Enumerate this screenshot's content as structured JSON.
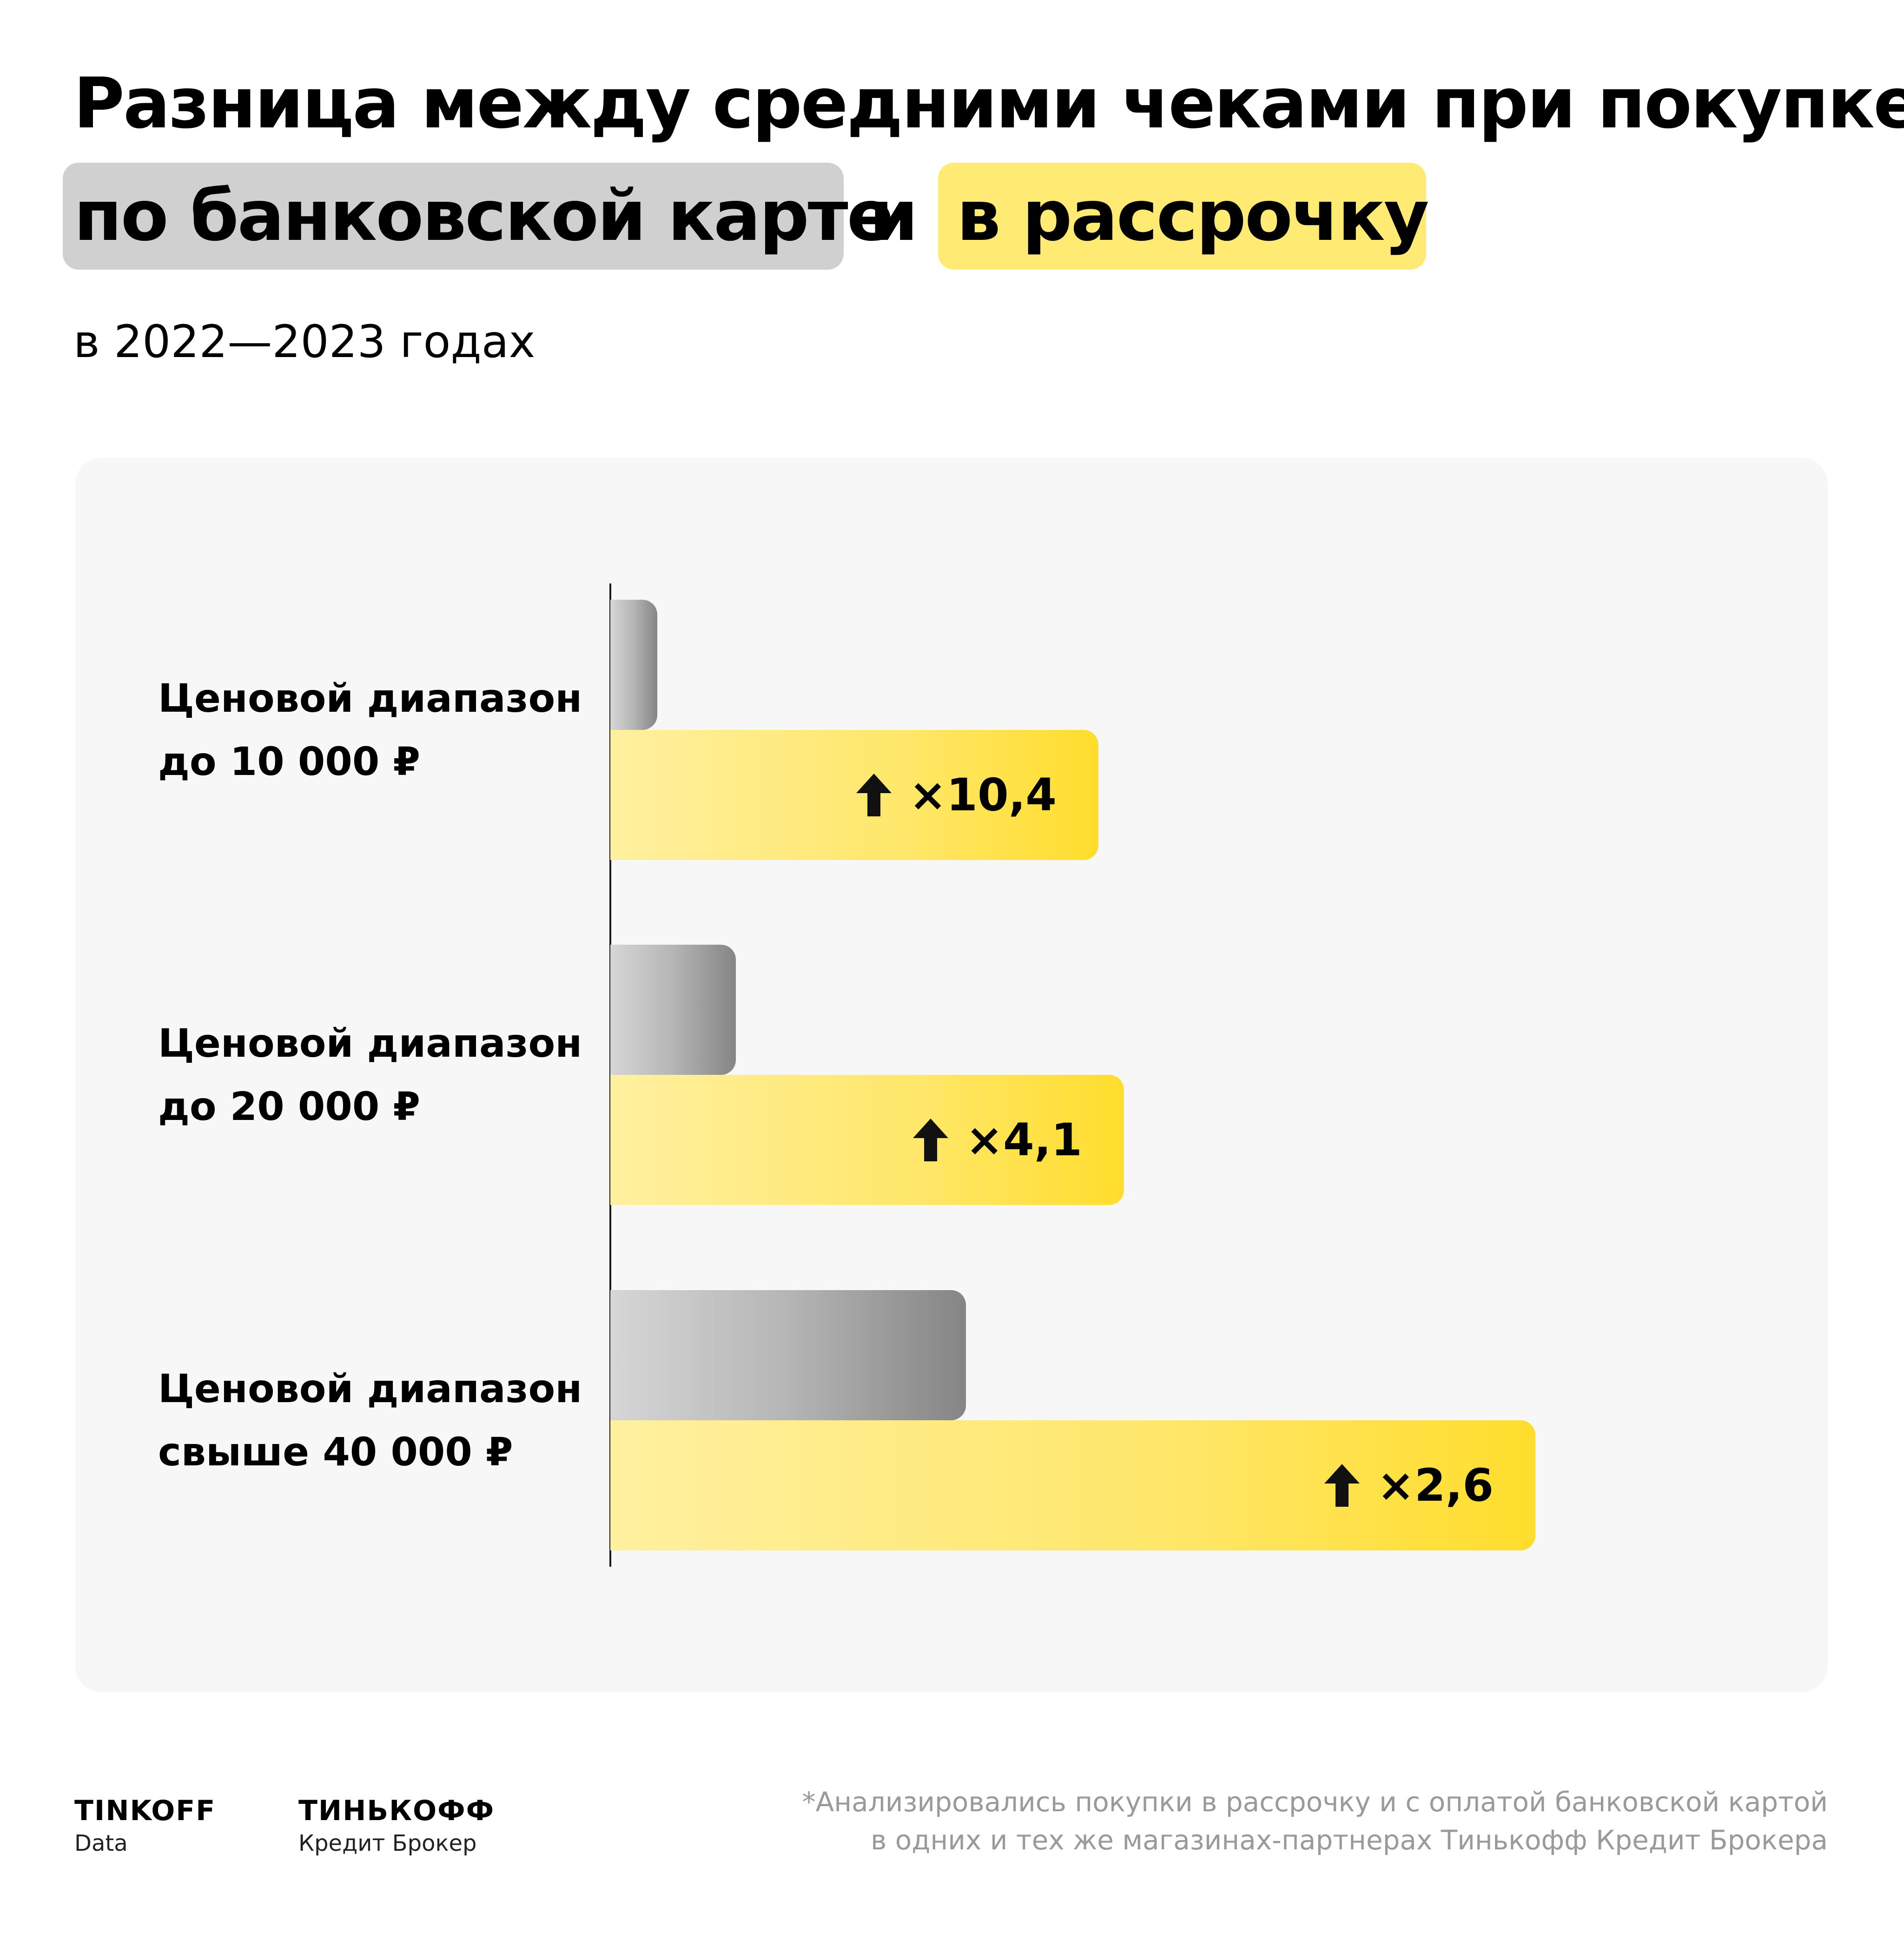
{
  "header": {
    "title_line1": "Разница между средними чеками при покупке",
    "title_card": "по банковской карте",
    "title_conj": "и",
    "title_installment": "в рассрочку",
    "subtitle": "в 2022—2023 годах"
  },
  "chart_data": {
    "type": "bar",
    "orientation": "horizontal",
    "categories": [
      [
        "Ценовой диапазон",
        "до 10 000 ₽"
      ],
      [
        "Ценовой диапазон",
        "до 20 000 ₽"
      ],
      [
        "Ценовой диапазон",
        "свыше 40 000 ₽"
      ]
    ],
    "series": [
      {
        "values": [
          1.0,
          1.0,
          1.0
        ],
        "color": "#9e9e9e"
      },
      {
        "values": [
          10.4,
          4.1,
          2.6
        ],
        "labels": [
          "×10,4",
          "×4,1",
          "×2,6"
        ],
        "color": "#ffdd2d"
      }
    ],
    "grid": false,
    "legend": "none"
  },
  "footer": {
    "logo1_main": "TINKOFF",
    "logo1_sub": "Data",
    "logo2_main": "ТИНЬКОФФ",
    "logo2_sub": "Кредит Брокер",
    "footnote_line1": "*Анализировались покупки в рассрочку и с оплатой банковской картой",
    "footnote_line2": "в одних и тех же магазинах-партнерах Тинькофф Кредит Брокера"
  },
  "colors": {
    "card_pill": "#d0d0d0",
    "installment_pill": "#ffeb73",
    "panel": "#f7f7f7",
    "installment_bar": "#ffdd2d",
    "card_bar": "#9e9e9e"
  }
}
